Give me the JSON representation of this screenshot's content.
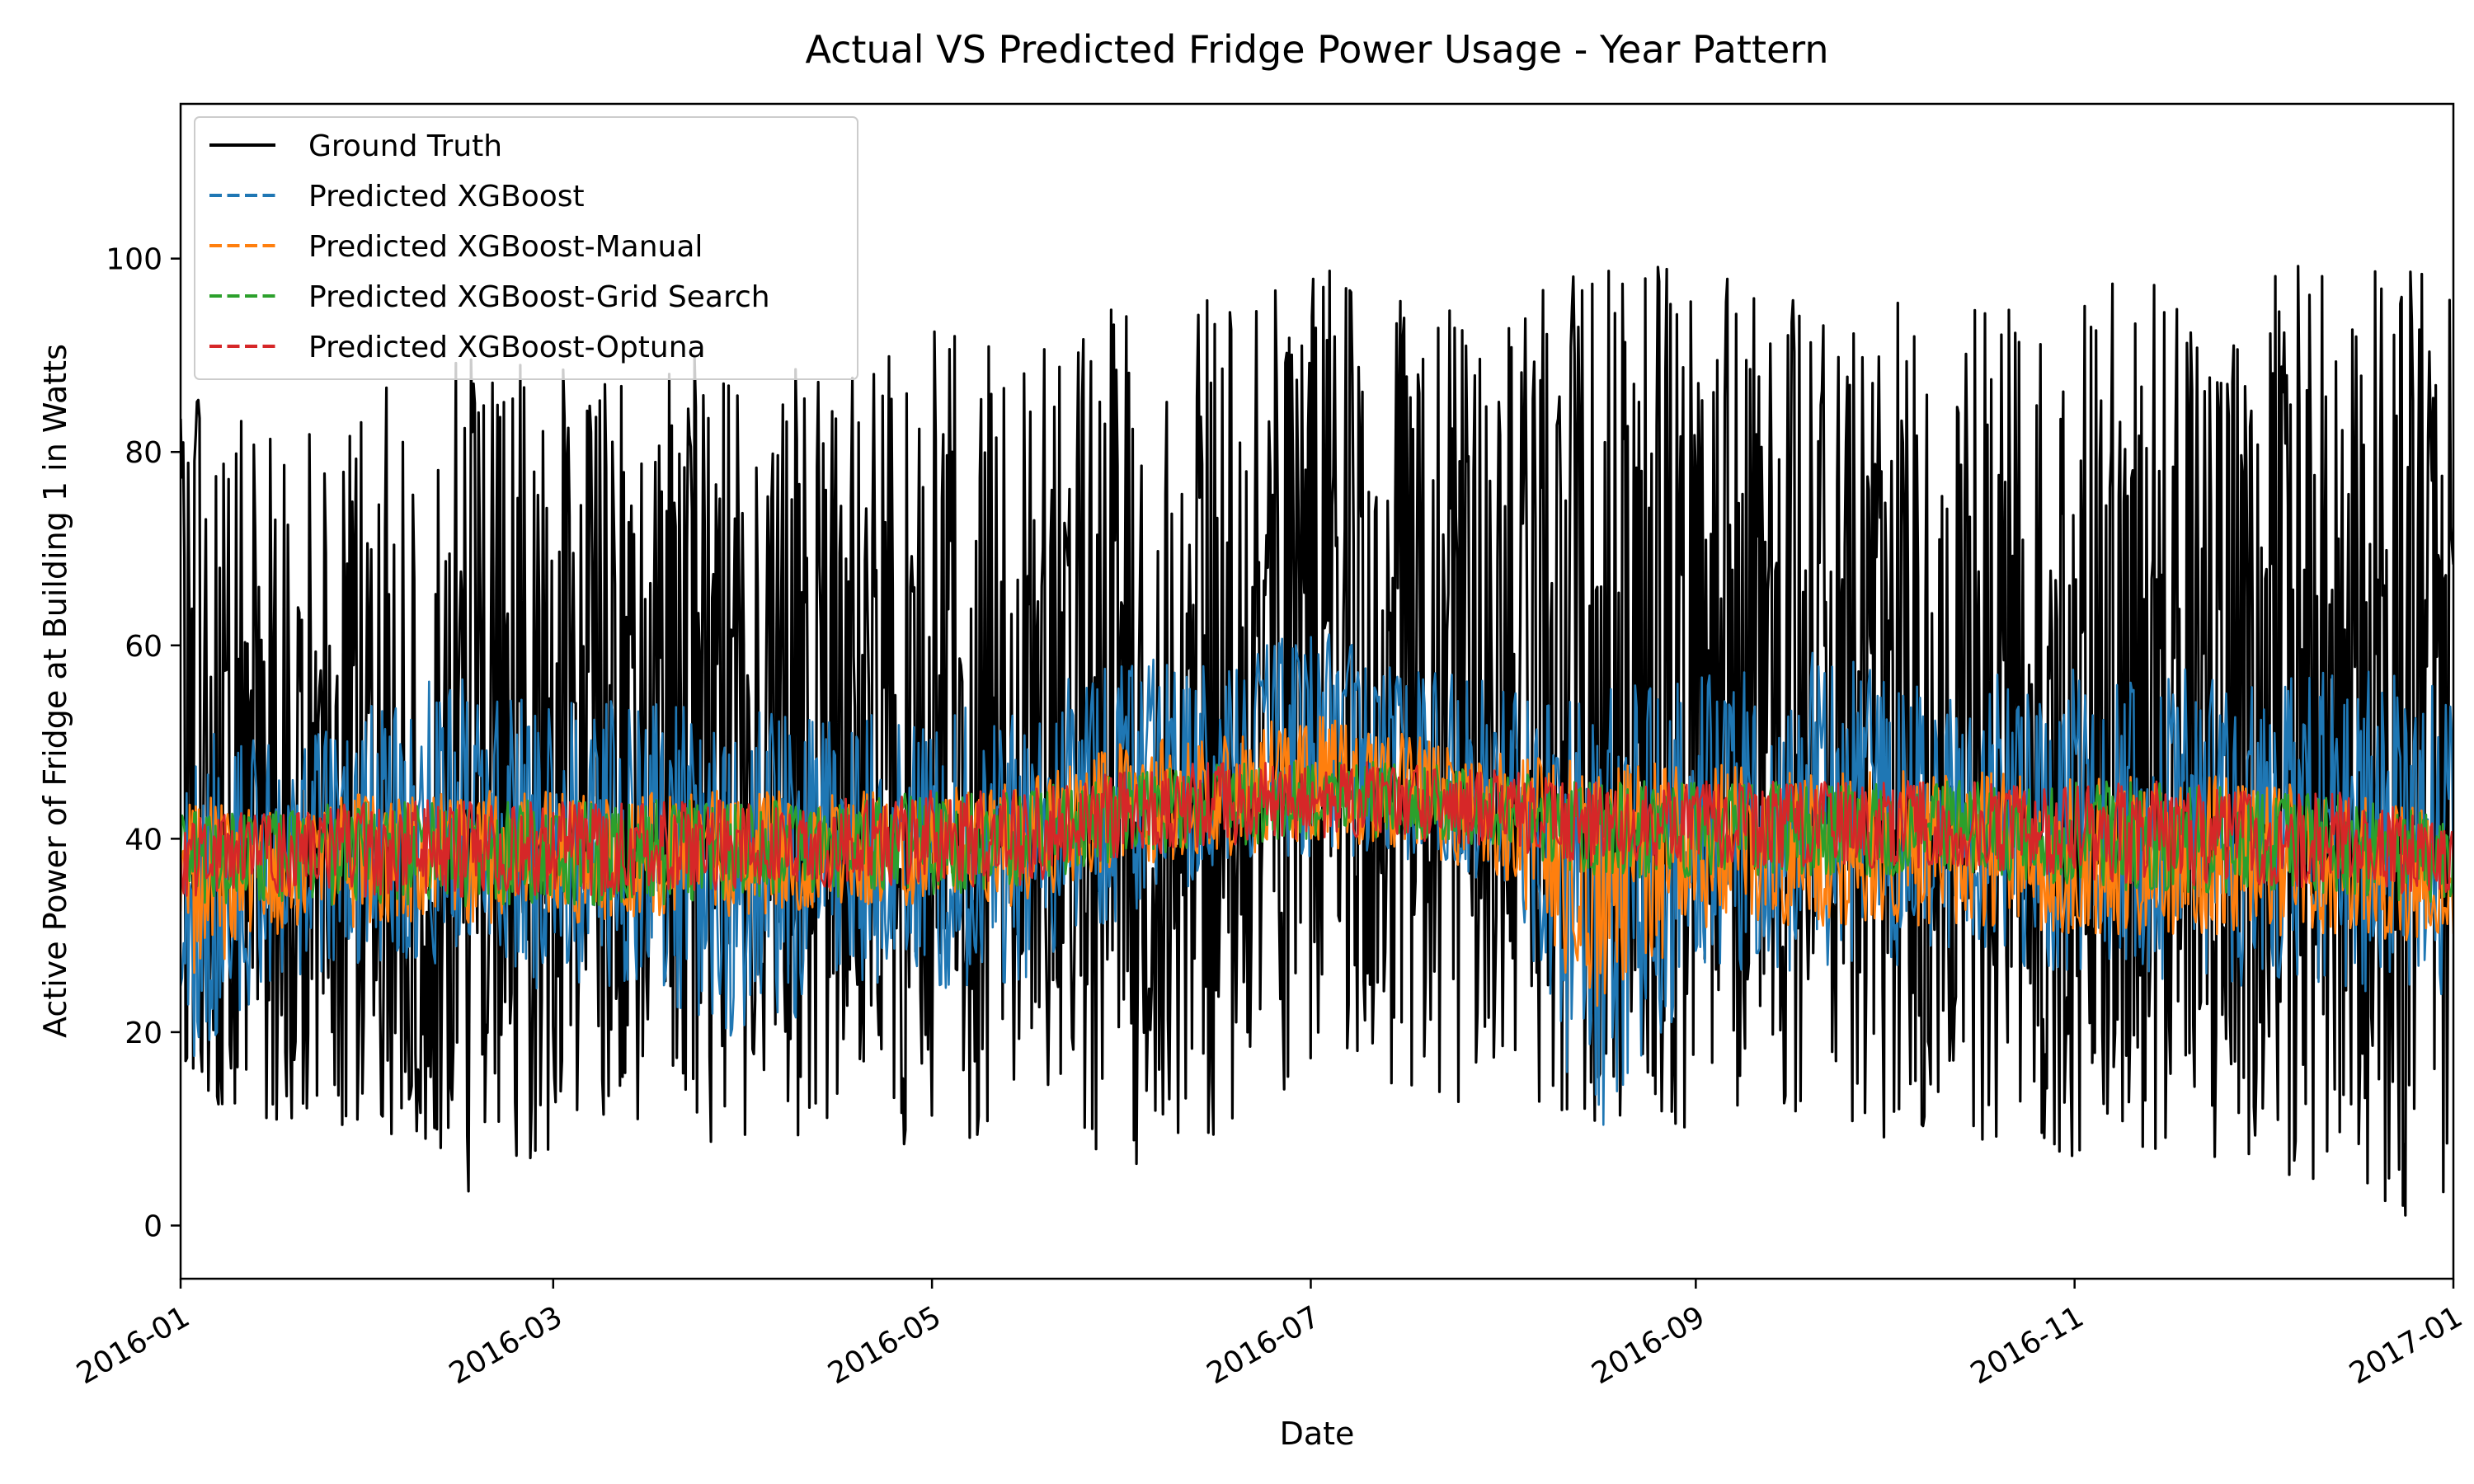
{
  "chart_data": {
    "type": "line",
    "title": "Actual VS Predicted Fridge Power Usage - Year Pattern",
    "xlabel": "Date",
    "ylabel": "Active Power of Fridge at Building 1 in Watts",
    "xlim": [
      "2016-01-01",
      "2017-01-01"
    ],
    "ylim": [
      -5.5,
      116
    ],
    "x_ticks": [
      "2016-01",
      "2016-03",
      "2016-05",
      "2016-07",
      "2016-09",
      "2016-11",
      "2017-01"
    ],
    "y_ticks": [
      0,
      20,
      40,
      60,
      80,
      100
    ],
    "grid": false,
    "legend_position": "top-left",
    "dates": [
      "2016-01-01",
      "2016-01-15",
      "2016-02-01",
      "2016-02-15",
      "2016-03-01",
      "2016-03-15",
      "2016-04-01",
      "2016-04-15",
      "2016-05-01",
      "2016-05-15",
      "2016-06-01",
      "2016-06-15",
      "2016-07-01",
      "2016-07-15",
      "2016-08-01",
      "2016-08-15",
      "2016-09-01",
      "2016-09-15",
      "2016-10-01",
      "2016-10-15",
      "2016-11-01",
      "2016-11-15",
      "2016-12-01",
      "2016-12-15",
      "2017-01-01"
    ],
    "series": [
      {
        "name": "Ground Truth",
        "color": "#000000",
        "style": "solid",
        "low": [
          12,
          10,
          9,
          3,
          8,
          9,
          7,
          9,
          8,
          9,
          5,
          9,
          14,
          13,
          12,
          10,
          9,
          10,
          9,
          8,
          5,
          8,
          6,
          2,
          0
        ],
        "high": [
          86,
          85,
          88,
          91,
          90,
          88,
          92,
          88,
          93,
          90,
          96,
          97,
          100,
          98,
          96,
          101,
          99,
          97,
          96,
          95,
          97,
          98,
          100,
          100,
          99
        ]
      },
      {
        "name": "Predicted XGBoost",
        "color": "#1f77b4",
        "style": "dashed",
        "low": [
          13,
          25,
          26,
          26,
          24,
          25,
          18,
          24,
          24,
          25,
          32,
          36,
          38,
          38,
          35,
          8,
          24,
          26,
          27,
          26,
          26,
          25,
          24,
          24,
          22
        ],
        "high": [
          52,
          50,
          54,
          58,
          55,
          54,
          56,
          52,
          55,
          54,
          60,
          58,
          62,
          58,
          56,
          55,
          58,
          60,
          58,
          57,
          58,
          58,
          56,
          58,
          57
        ]
      },
      {
        "name": "Predicted XGBoost-Manual",
        "color": "#ff7f0e",
        "style": "dashed",
        "low": [
          25,
          30,
          31,
          31,
          31,
          32,
          32,
          33,
          33,
          33,
          37,
          38,
          39,
          39,
          36,
          22,
          30,
          31,
          31,
          31,
          30,
          30,
          30,
          30,
          29
        ],
        "high": [
          45,
          43,
          45,
          45,
          45,
          45,
          45,
          45,
          45,
          46,
          50,
          51,
          53,
          51,
          49,
          48,
          48,
          47,
          47,
          47,
          47,
          47,
          46,
          46,
          42
        ]
      },
      {
        "name": "Predicted XGBoost-Grid Search",
        "color": "#2ca02c",
        "style": "dashed",
        "low": [
          33,
          33,
          33,
          33,
          33,
          33,
          34,
          34,
          34,
          35,
          38,
          39,
          40,
          40,
          39,
          36,
          36,
          36,
          36,
          36,
          35,
          34,
          34,
          34,
          33
        ],
        "high": [
          43,
          43,
          44,
          44,
          44,
          44,
          44,
          44,
          45,
          45,
          47,
          48,
          48,
          48,
          47,
          46,
          46,
          46,
          46,
          46,
          46,
          46,
          45,
          45,
          42
        ]
      },
      {
        "name": "Predicted XGBoost-Optuna",
        "color": "#d62728",
        "style": "dashed",
        "low": [
          34,
          34,
          34,
          34,
          34,
          34,
          35,
          35,
          35,
          35,
          38,
          39,
          40,
          40,
          39,
          37,
          37,
          37,
          37,
          37,
          36,
          35,
          35,
          35,
          33
        ],
        "high": [
          42,
          43,
          44,
          44,
          44,
          44,
          44,
          44,
          45,
          45,
          47,
          48,
          48,
          48,
          47,
          46,
          46,
          46,
          46,
          46,
          46,
          46,
          45,
          45,
          41
        ]
      }
    ]
  }
}
